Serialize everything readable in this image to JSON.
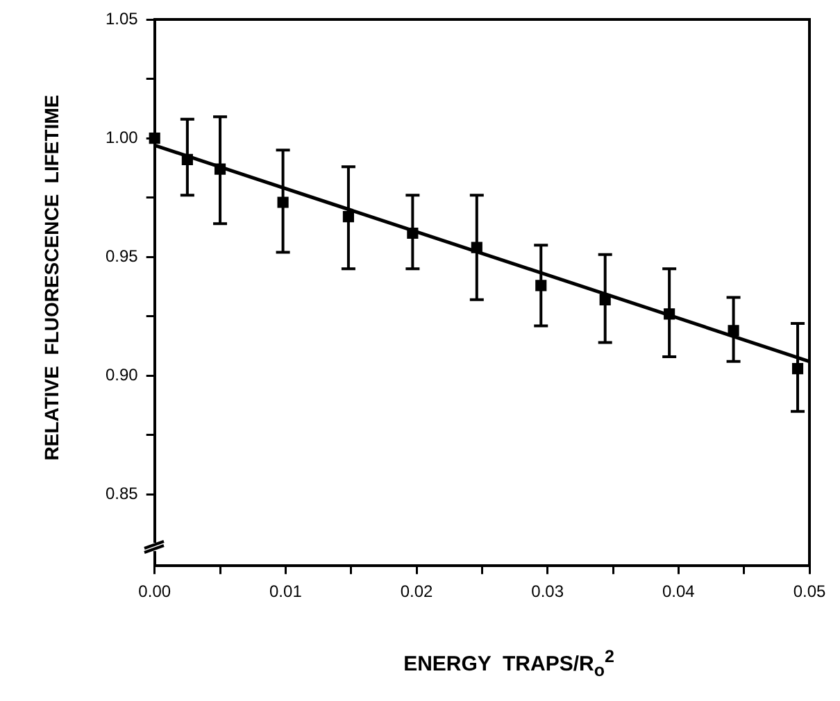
{
  "chart_data": {
    "type": "scatter",
    "xlabel": "ENERGY  TRAPS/R$_{o}$$^{2}$",
    "ylabel": "RELATIVE  FLUORESCENCE  LIFETIME",
    "xlim": [
      0,
      0.05
    ],
    "ylim": [
      0.82,
      1.05
    ],
    "xticks": [
      {
        "value": 0,
        "label": "0.00"
      },
      {
        "value": 0.005,
        "label": null
      },
      {
        "value": 0.01,
        "label": "0.01"
      },
      {
        "value": 0.015,
        "label": null
      },
      {
        "value": 0.02,
        "label": "0.02"
      },
      {
        "value": 0.025,
        "label": null
      },
      {
        "value": 0.03,
        "label": "0.03"
      },
      {
        "value": 0.035,
        "label": null
      },
      {
        "value": 0.04,
        "label": "0.04"
      },
      {
        "value": 0.045,
        "label": null
      },
      {
        "value": 0.05,
        "label": "0.05"
      }
    ],
    "yticks": [
      {
        "value": 0.85,
        "label": "0.85"
      },
      {
        "value": 0.875,
        "label": null
      },
      {
        "value": 0.9,
        "label": "0.90"
      },
      {
        "value": 0.925,
        "label": null
      },
      {
        "value": 0.95,
        "label": "0.95"
      },
      {
        "value": 0.975,
        "label": null
      },
      {
        "value": 1.0,
        "label": "1.00"
      },
      {
        "value": 1.025,
        "label": null
      },
      {
        "value": 1.05,
        "label": "1.05"
      }
    ],
    "marker": "square",
    "series": [
      {
        "type": "scatter",
        "color": "#000000",
        "x": [
          0,
          0.0025,
          0.005,
          0.0098,
          0.0148,
          0.0197,
          0.0246,
          0.0295,
          0.0344,
          0.0393,
          0.0442,
          0.0491
        ],
        "values": [
          1.0,
          0.991,
          0.987,
          0.973,
          0.967,
          0.96,
          0.954,
          0.938,
          0.932,
          0.926,
          0.919,
          0.903
        ],
        "errors": [
          null,
          [
            0.976,
            1.008
          ],
          [
            0.964,
            1.009
          ],
          [
            0.952,
            0.995
          ],
          [
            0.945,
            0.988
          ],
          [
            0.945,
            0.976
          ],
          [
            0.932,
            0.976
          ],
          [
            0.921,
            0.955
          ],
          [
            0.914,
            0.951
          ],
          [
            0.908,
            0.945
          ],
          [
            0.906,
            0.933
          ],
          [
            0.885,
            0.922
          ]
        ]
      },
      {
        "type": "line",
        "color": "#000000",
        "x": [
          0,
          0.05
        ],
        "values": [
          0.997,
          0.906
        ],
        "marker": "none"
      }
    ]
  }
}
